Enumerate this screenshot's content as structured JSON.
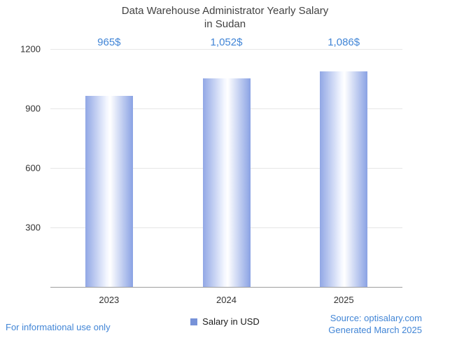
{
  "title": {
    "line1": "Data Warehouse Administrator Yearly Salary",
    "line2": "in Sudan"
  },
  "legend": {
    "label": "Salary in USD"
  },
  "footer": {
    "left": "For informational use only",
    "source": "Source: optisalary.com",
    "generated": "Generated March 2025"
  },
  "colors": {
    "accent_blue": "#4185d6",
    "bar_edge": "#8ea8e8",
    "legend_square": "#7792d8",
    "grid": "#e6e6e6",
    "axis": "#9e9e9e",
    "title_text": "#424242"
  },
  "chart_data": {
    "type": "bar",
    "title": "Data Warehouse Administrator Yearly Salary in Sudan",
    "categories": [
      "2023",
      "2024",
      "2025"
    ],
    "values": [
      965,
      1052,
      1086
    ],
    "value_labels": [
      "965$",
      "1,052$",
      "1,086$"
    ],
    "series_name": "Salary in USD",
    "xlabel": "",
    "ylabel": "",
    "ylim": [
      0,
      1200
    ],
    "yticks": [
      300,
      600,
      900,
      1200
    ],
    "grid": true,
    "legend_position": "bottom"
  }
}
